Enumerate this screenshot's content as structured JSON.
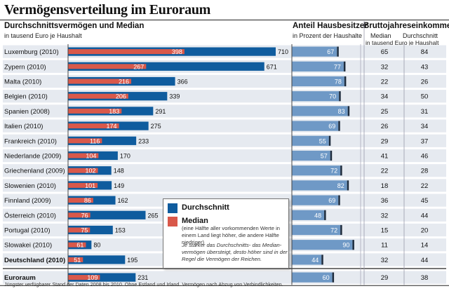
{
  "title": "Vermögensverteilung im Euroraum",
  "headers": {
    "wealth": "Durchschnittsvermögen und Median",
    "wealth_unit": "in tausend Euro je Haushalt",
    "owners": "Anteil Hausbesitzer",
    "owners_unit": "in Prozent der Haushalte",
    "income": "Bruttojahreseinkommen",
    "income_median": "Median",
    "income_avg": "Durchschnitt",
    "income_unit": "in tausend Euro je Haushalt"
  },
  "legend": {
    "avg_label": "Durchschnitt",
    "median_label": "Median",
    "median_desc": "(eine Hälfte aller vorkommenden Werte in einem Land liegt höher, die andere Hälfte niedriger)",
    "note": "Je stärker das Durchschnitts- das Median- vermögen übersteigt, desto höher sind in der Regel die Vermögen der Reichen."
  },
  "footnote": "Jüngster verfügbarer Stand der Daten 2008 bis 2010. Ohne Estland und Irland. Vermögen nach Abzug von Verbindlichkeiten.",
  "colors": {
    "average": "#0f5c9e",
    "median": "#d9584a",
    "owners_bar": "#6f99c6",
    "row_band": "#e6eaf0",
    "dark_line": "#1d2b3c"
  },
  "chart_data": {
    "type": "bar",
    "categories": [
      "Luxemburg (2010)",
      "Zypern (2010)",
      "Malta (2010)",
      "Belgien (2010)",
      "Spanien (2008)",
      "Italien (2010)",
      "Frankreich (2010)",
      "Niederlande (2009)",
      "Griechenland (2009)",
      "Slowenien (2010)",
      "Finnland (2009)",
      "Österreich (2010)",
      "Portugal (2010)",
      "Slowakei (2010)",
      "Deutschland (2010)",
      "Euroraum"
    ],
    "bold_categories": [
      "Deutschland (2010)",
      "Euroraum"
    ],
    "series": [
      {
        "name": "Durchschnitt",
        "values": [
          710,
          671,
          366,
          339,
          291,
          275,
          233,
          170,
          148,
          149,
          162,
          265,
          153,
          80,
          195,
          231
        ]
      },
      {
        "name": "Median",
        "values": [
          398,
          267,
          216,
          206,
          183,
          174,
          116,
          104,
          102,
          101,
          86,
          76,
          75,
          61,
          51,
          109
        ]
      }
    ],
    "wealth_xlim": [
      0,
      710
    ],
    "homeowners_percent": [
      67,
      77,
      78,
      70,
      83,
      69,
      55,
      57,
      72,
      82,
      69,
      48,
      72,
      90,
      44,
      60
    ],
    "homeowners_xlim": [
      0,
      100
    ],
    "income_median": [
      65,
      32,
      22,
      34,
      25,
      26,
      29,
      41,
      22,
      18,
      36,
      32,
      15,
      11,
      32,
      29
    ],
    "income_average": [
      84,
      43,
      26,
      50,
      31,
      34,
      37,
      46,
      28,
      22,
      45,
      44,
      20,
      14,
      44,
      38
    ]
  }
}
